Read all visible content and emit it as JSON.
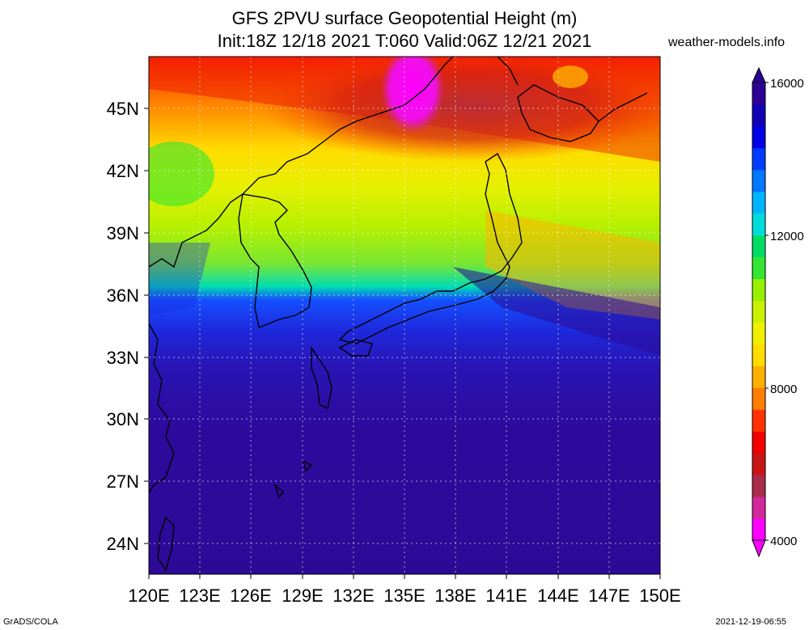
{
  "title_line1": "GFS 2PVU surface Geopotential Height (m)",
  "title_line2": "Init:18Z 12/18 2021 T:060 Valid:06Z 12/21 2021",
  "watermark": "weather-models.info",
  "footer_left": "GrADS/COLA",
  "footer_right": "2021-12-19-06:55",
  "axes": {
    "lon_labels": [
      "120E",
      "123E",
      "126E",
      "129E",
      "132E",
      "135E",
      "138E",
      "141E",
      "144E",
      "147E",
      "150E"
    ],
    "lat_labels": [
      "45N",
      "42N",
      "39N",
      "36N",
      "33N",
      "30N",
      "27N",
      "24N"
    ],
    "lon_range": [
      120,
      150
    ],
    "lat_range": [
      22.5,
      47.5
    ]
  },
  "colorbar": {
    "labels": [
      "16000",
      "12000",
      "8000",
      "4000"
    ],
    "min": 4000,
    "max": 16000,
    "colors": [
      "#ff00ff",
      "#d2289b",
      "#aa2c4c",
      "#c81616",
      "#f00000",
      "#ff3200",
      "#ff7d00",
      "#ffaf00",
      "#ffdc00",
      "#f0f000",
      "#c8f000",
      "#96f000",
      "#32e632",
      "#00dc64",
      "#00dcdc",
      "#00b4ff",
      "#0078ff",
      "#003cff",
      "#0000e6",
      "#1400b4",
      "#2d0096"
    ]
  },
  "map": {
    "field": "2PVU surface geopotential height",
    "coastlines": "black",
    "grid": "dotted"
  }
}
